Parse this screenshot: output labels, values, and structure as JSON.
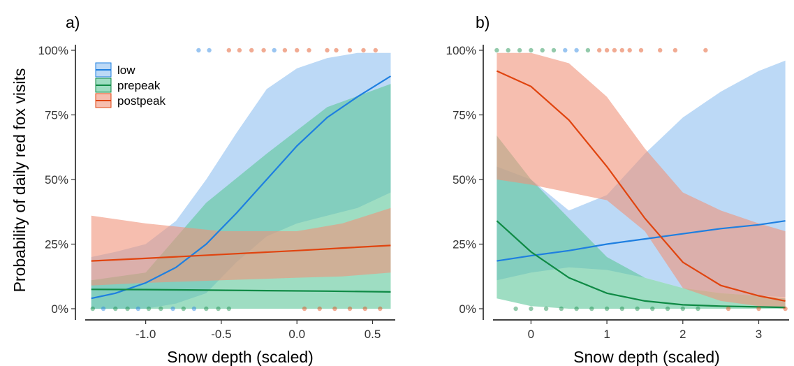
{
  "figure": {
    "ylabel": "Probability of daily red fox visits",
    "colors": {
      "low": "#1e7fe0",
      "prepeak": "#0f8a45",
      "postpeak": "#e0440f"
    },
    "ribbon_colors": {
      "low": "#8fbff0",
      "prepeak": "#5ec79a",
      "postpeak": "#f0927a"
    },
    "legend": {
      "placement": "top-left of panel a",
      "entries": [
        {
          "key": "low",
          "label": "low"
        },
        {
          "key": "prepeak",
          "label": "prepeak"
        },
        {
          "key": "postpeak",
          "label": "postpeak"
        }
      ]
    }
  },
  "chart_data": [
    {
      "type": "line",
      "panel_label": "a)",
      "xlabel": "Snow depth (scaled)",
      "xlim": [
        -1.4,
        0.65
      ],
      "ylim": [
        0,
        1
      ],
      "xticks": [
        -1.0,
        -0.5,
        0.0,
        0.5
      ],
      "xtick_labels": [
        "-1.0",
        "-0.5",
        "0.0",
        "0.5"
      ],
      "yticks": [
        0,
        0.25,
        0.5,
        0.75,
        1.0
      ],
      "ytick_labels": [
        "0%",
        "25%",
        "50%",
        "75%",
        "100%"
      ],
      "grid": false,
      "series": [
        {
          "name": "low",
          "x": [
            -1.36,
            -1.2,
            -1.0,
            -0.8,
            -0.6,
            -0.4,
            -0.2,
            0.0,
            0.2,
            0.4,
            0.62
          ],
          "y": [
            0.04,
            0.06,
            0.1,
            0.16,
            0.25,
            0.37,
            0.5,
            0.63,
            0.74,
            0.82,
            0.9
          ],
          "lower": [
            0.0,
            0.0,
            0.0,
            0.02,
            0.06,
            0.18,
            0.28,
            0.33,
            0.36,
            0.39,
            0.45
          ],
          "upper": [
            0.2,
            0.22,
            0.25,
            0.34,
            0.5,
            0.68,
            0.85,
            0.93,
            0.97,
            0.99,
            0.99
          ]
        },
        {
          "name": "prepeak",
          "x": [
            -1.36,
            -1.0,
            -0.6,
            -0.2,
            0.2,
            0.62
          ],
          "y": [
            0.075,
            0.074,
            0.072,
            0.07,
            0.068,
            0.065
          ],
          "lower": [
            0.0,
            0.0,
            0.0,
            0.0,
            0.0,
            0.0
          ],
          "upper": [
            0.11,
            0.14,
            0.41,
            0.6,
            0.78,
            0.87
          ]
        },
        {
          "name": "postpeak",
          "x": [
            -1.36,
            -1.0,
            -0.5,
            0.0,
            0.3,
            0.62
          ],
          "y": [
            0.185,
            0.195,
            0.21,
            0.225,
            0.235,
            0.245
          ],
          "lower": [
            0.09,
            0.1,
            0.11,
            0.12,
            0.125,
            0.14
          ],
          "upper": [
            0.36,
            0.33,
            0.3,
            0.3,
            0.33,
            0.39
          ]
        }
      ],
      "rug_points": [
        {
          "series": "low",
          "x": -0.65,
          "y": 1
        },
        {
          "series": "low",
          "x": -0.58,
          "y": 1
        },
        {
          "series": "postpeak",
          "x": -0.45,
          "y": 1
        },
        {
          "series": "postpeak",
          "x": -0.38,
          "y": 1
        },
        {
          "series": "postpeak",
          "x": -0.3,
          "y": 1
        },
        {
          "series": "postpeak",
          "x": -0.22,
          "y": 1
        },
        {
          "series": "low",
          "x": -0.15,
          "y": 1
        },
        {
          "series": "postpeak",
          "x": -0.08,
          "y": 1
        },
        {
          "series": "postpeak",
          "x": 0.0,
          "y": 1
        },
        {
          "series": "postpeak",
          "x": 0.08,
          "y": 1
        },
        {
          "series": "postpeak",
          "x": 0.2,
          "y": 1
        },
        {
          "series": "postpeak",
          "x": 0.26,
          "y": 1
        },
        {
          "series": "postpeak",
          "x": 0.35,
          "y": 1
        },
        {
          "series": "postpeak",
          "x": 0.44,
          "y": 1
        },
        {
          "series": "postpeak",
          "x": 0.52,
          "y": 1
        },
        {
          "series": "prepeak",
          "x": -1.35,
          "y": 0
        },
        {
          "series": "low",
          "x": -1.28,
          "y": 0
        },
        {
          "series": "prepeak",
          "x": -1.2,
          "y": 0
        },
        {
          "series": "prepeak",
          "x": -1.12,
          "y": 0
        },
        {
          "series": "low",
          "x": -1.05,
          "y": 0
        },
        {
          "series": "prepeak",
          "x": -0.98,
          "y": 0
        },
        {
          "series": "prepeak",
          "x": -0.9,
          "y": 0
        },
        {
          "series": "low",
          "x": -0.82,
          "y": 0
        },
        {
          "series": "prepeak",
          "x": -0.75,
          "y": 0
        },
        {
          "series": "low",
          "x": -0.68,
          "y": 0
        },
        {
          "series": "prepeak",
          "x": -0.6,
          "y": 0
        },
        {
          "series": "prepeak",
          "x": -0.52,
          "y": 0
        },
        {
          "series": "prepeak",
          "x": -0.45,
          "y": 0
        },
        {
          "series": "postpeak",
          "x": 0.05,
          "y": 0
        },
        {
          "series": "postpeak",
          "x": 0.15,
          "y": 0
        },
        {
          "series": "postpeak",
          "x": 0.25,
          "y": 0
        },
        {
          "series": "postpeak",
          "x": 0.35,
          "y": 0
        },
        {
          "series": "postpeak",
          "x": 0.45,
          "y": 0
        },
        {
          "series": "postpeak",
          "x": 0.55,
          "y": 0
        }
      ]
    },
    {
      "type": "line",
      "panel_label": "b)",
      "xlabel": "Snow depth (scaled)",
      "xlim": [
        -0.5,
        3.4
      ],
      "ylim": [
        0,
        1
      ],
      "xticks": [
        0,
        1,
        2,
        3
      ],
      "xtick_labels": [
        "0",
        "1",
        "2",
        "3"
      ],
      "yticks": [
        0,
        0.25,
        0.5,
        0.75,
        1.0
      ],
      "ytick_labels": [
        "0%",
        "25%",
        "50%",
        "75%",
        "100%"
      ],
      "grid": false,
      "series": [
        {
          "name": "low",
          "x": [
            -0.45,
            0.0,
            0.5,
            1.0,
            1.5,
            2.0,
            2.5,
            3.0,
            3.35
          ],
          "y": [
            0.185,
            0.205,
            0.225,
            0.25,
            0.27,
            0.29,
            0.31,
            0.325,
            0.34
          ],
          "lower": [
            0.11,
            0.14,
            0.16,
            0.15,
            0.12,
            0.08,
            0.06,
            0.05,
            0.045
          ],
          "upper": [
            0.55,
            0.5,
            0.38,
            0.44,
            0.6,
            0.74,
            0.84,
            0.92,
            0.96
          ]
        },
        {
          "name": "prepeak",
          "x": [
            -0.45,
            0.0,
            0.5,
            1.0,
            1.5,
            2.0,
            2.5,
            3.0,
            3.35
          ],
          "y": [
            0.34,
            0.22,
            0.12,
            0.06,
            0.03,
            0.015,
            0.01,
            0.007,
            0.005
          ],
          "lower": [
            0.04,
            0.01,
            0.0,
            0.0,
            0.0,
            0.0,
            0.0,
            0.0,
            0.0
          ],
          "upper": [
            0.67,
            0.5,
            0.35,
            0.2,
            0.12,
            0.08,
            0.06,
            0.05,
            0.04
          ]
        },
        {
          "name": "postpeak",
          "x": [
            -0.45,
            0.0,
            0.5,
            1.0,
            1.5,
            2.0,
            2.5,
            3.0,
            3.35
          ],
          "y": [
            0.92,
            0.86,
            0.73,
            0.55,
            0.35,
            0.18,
            0.09,
            0.05,
            0.03
          ],
          "lower": [
            0.5,
            0.48,
            0.45,
            0.42,
            0.3,
            0.08,
            0.03,
            0.01,
            0.0
          ],
          "upper": [
            0.99,
            0.99,
            0.95,
            0.82,
            0.62,
            0.45,
            0.38,
            0.33,
            0.3
          ]
        }
      ],
      "rug_points": [
        {
          "series": "prepeak",
          "x": -0.45,
          "y": 1
        },
        {
          "series": "prepeak",
          "x": -0.3,
          "y": 1
        },
        {
          "series": "prepeak",
          "x": -0.15,
          "y": 1
        },
        {
          "series": "prepeak",
          "x": 0.0,
          "y": 1
        },
        {
          "series": "prepeak",
          "x": 0.15,
          "y": 1
        },
        {
          "series": "prepeak",
          "x": 0.3,
          "y": 1
        },
        {
          "series": "low",
          "x": 0.45,
          "y": 1
        },
        {
          "series": "low",
          "x": 0.6,
          "y": 1
        },
        {
          "series": "prepeak",
          "x": 0.75,
          "y": 1
        },
        {
          "series": "postpeak",
          "x": 0.9,
          "y": 1
        },
        {
          "series": "postpeak",
          "x": 1.0,
          "y": 1
        },
        {
          "series": "postpeak",
          "x": 1.1,
          "y": 1
        },
        {
          "series": "postpeak",
          "x": 1.2,
          "y": 1
        },
        {
          "series": "postpeak",
          "x": 1.3,
          "y": 1
        },
        {
          "series": "postpeak",
          "x": 1.45,
          "y": 1
        },
        {
          "series": "postpeak",
          "x": 1.7,
          "y": 1
        },
        {
          "series": "postpeak",
          "x": 1.9,
          "y": 1
        },
        {
          "series": "postpeak",
          "x": 2.3,
          "y": 1
        },
        {
          "series": "prepeak",
          "x": -0.2,
          "y": 0
        },
        {
          "series": "prepeak",
          "x": 0.0,
          "y": 0
        },
        {
          "series": "prepeak",
          "x": 0.2,
          "y": 0
        },
        {
          "series": "prepeak",
          "x": 0.4,
          "y": 0
        },
        {
          "series": "prepeak",
          "x": 0.6,
          "y": 0
        },
        {
          "series": "prepeak",
          "x": 0.8,
          "y": 0
        },
        {
          "series": "prepeak",
          "x": 1.0,
          "y": 0
        },
        {
          "series": "prepeak",
          "x": 1.2,
          "y": 0
        },
        {
          "series": "prepeak",
          "x": 1.4,
          "y": 0
        },
        {
          "series": "prepeak",
          "x": 1.6,
          "y": 0
        },
        {
          "series": "prepeak",
          "x": 1.8,
          "y": 0
        },
        {
          "series": "prepeak",
          "x": 2.0,
          "y": 0
        },
        {
          "series": "prepeak",
          "x": 2.2,
          "y": 0
        },
        {
          "series": "postpeak",
          "x": 2.6,
          "y": 0
        },
        {
          "series": "postpeak",
          "x": 3.0,
          "y": 0
        },
        {
          "series": "postpeak",
          "x": 3.35,
          "y": 0
        }
      ]
    }
  ]
}
